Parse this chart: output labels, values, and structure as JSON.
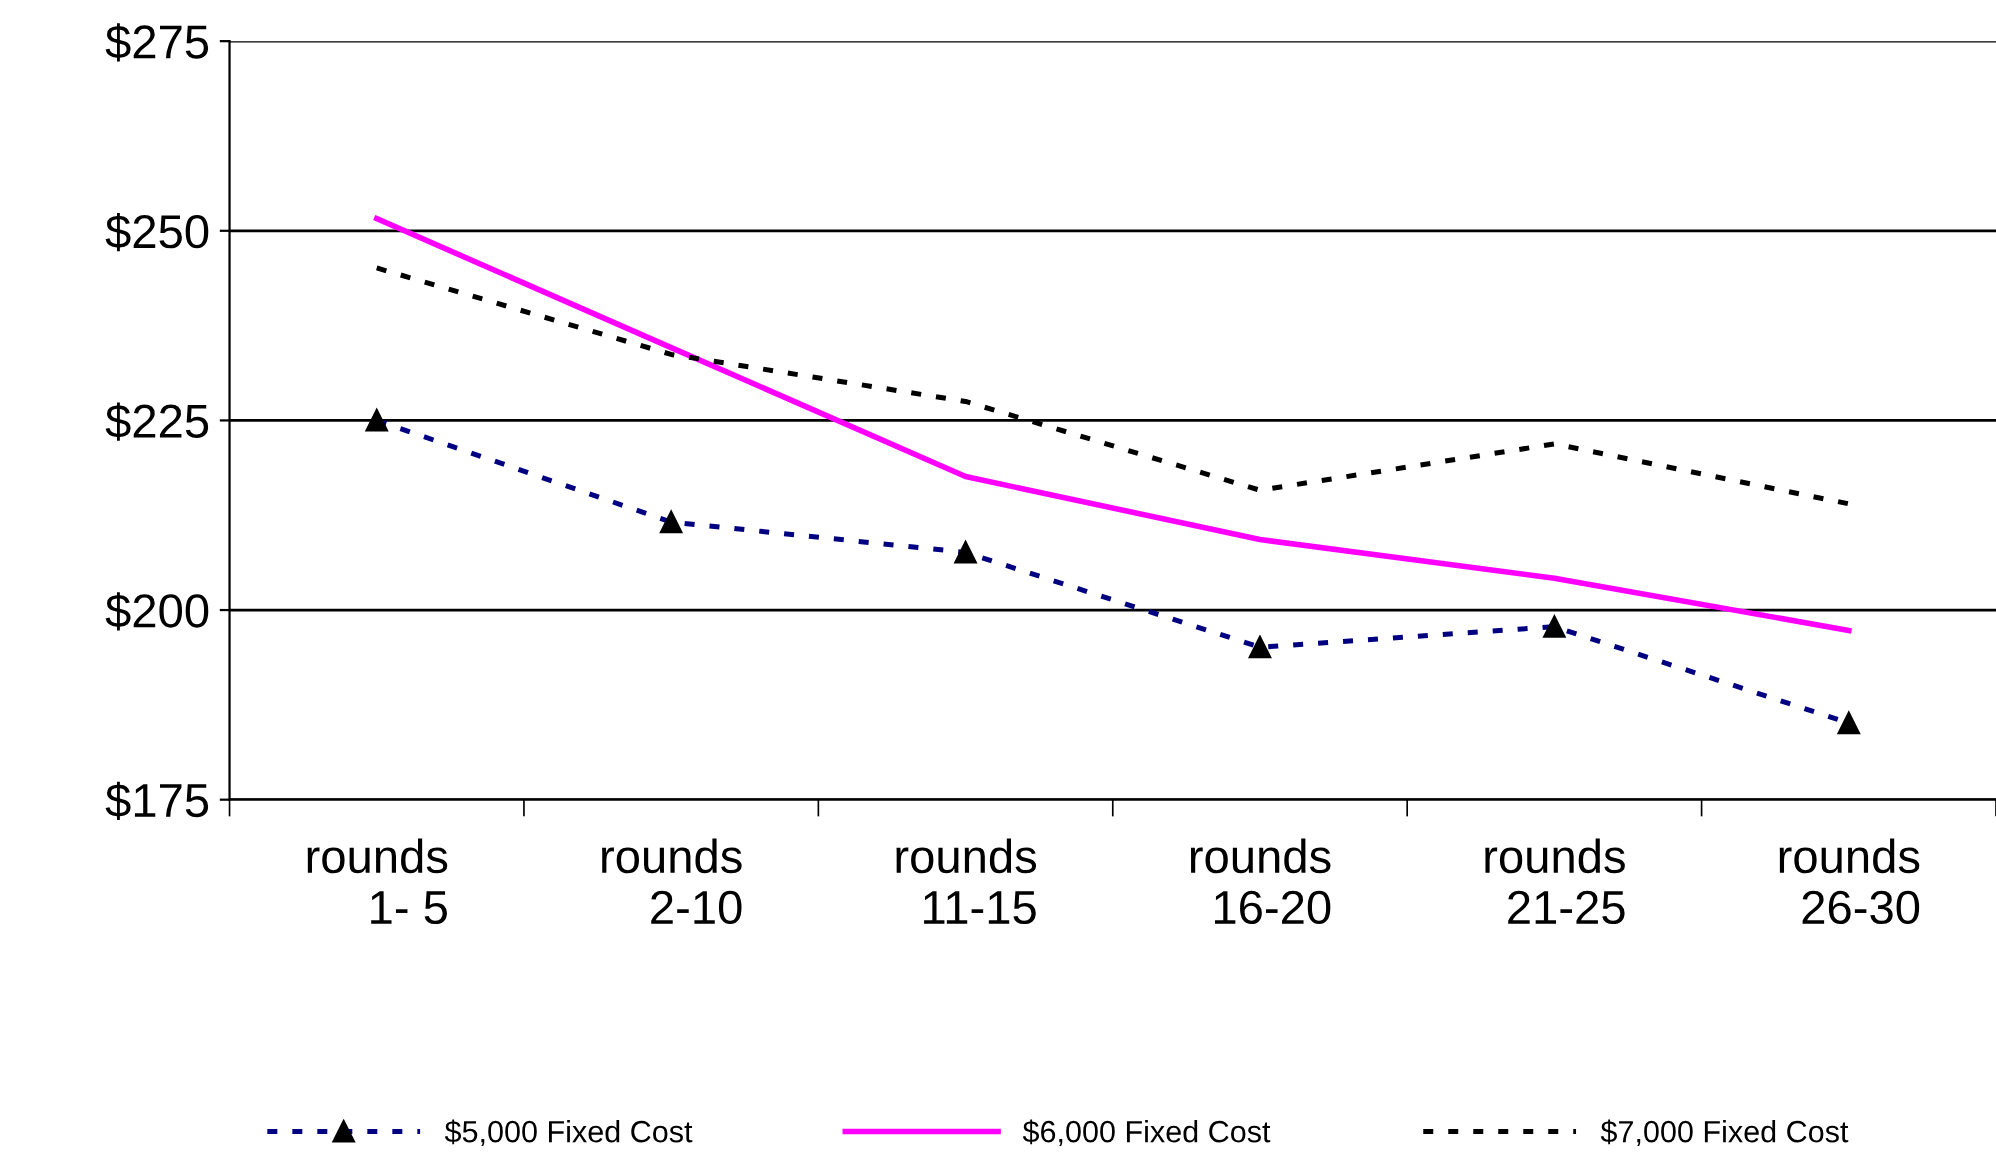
{
  "chart_data": {
    "type": "line",
    "categories": [
      "rounds\n1- 5",
      "rounds\n2-10",
      "rounds\n11-15",
      "rounds\n16-20",
      "rounds\n21-25",
      "rounds\n26-30"
    ],
    "series": [
      {
        "name": "$5,000 Fixed Cost",
        "color": "#000080",
        "values": [
          225,
          211.6,
          207.6,
          195.1,
          197.8,
          185.1
        ],
        "marker": "triangle",
        "line_style": "dotted"
      },
      {
        "name": "$6,000 Fixed Cost",
        "color": "#ff00ff",
        "values": [
          251.6,
          234.6,
          217.6,
          209.3,
          204.2,
          197.3
        ],
        "marker": "none",
        "line_style": "solid"
      },
      {
        "name": "$7,000 Fixed Cost",
        "color": "#000000",
        "values": [
          245.1,
          233.7,
          227.5,
          215.8,
          221.9,
          214
        ],
        "marker": "none",
        "line_style": "dotted"
      }
    ],
    "ylim": [
      175,
      275
    ],
    "yticks": [
      {
        "value": 175,
        "label": "$175"
      },
      {
        "value": 200,
        "label": "$200"
      },
      {
        "value": 225,
        "label": "$225"
      },
      {
        "value": 250,
        "label": "$250"
      },
      {
        "value": 275,
        "label": "$275"
      }
    ],
    "grid": "y",
    "legend": "bottom"
  }
}
